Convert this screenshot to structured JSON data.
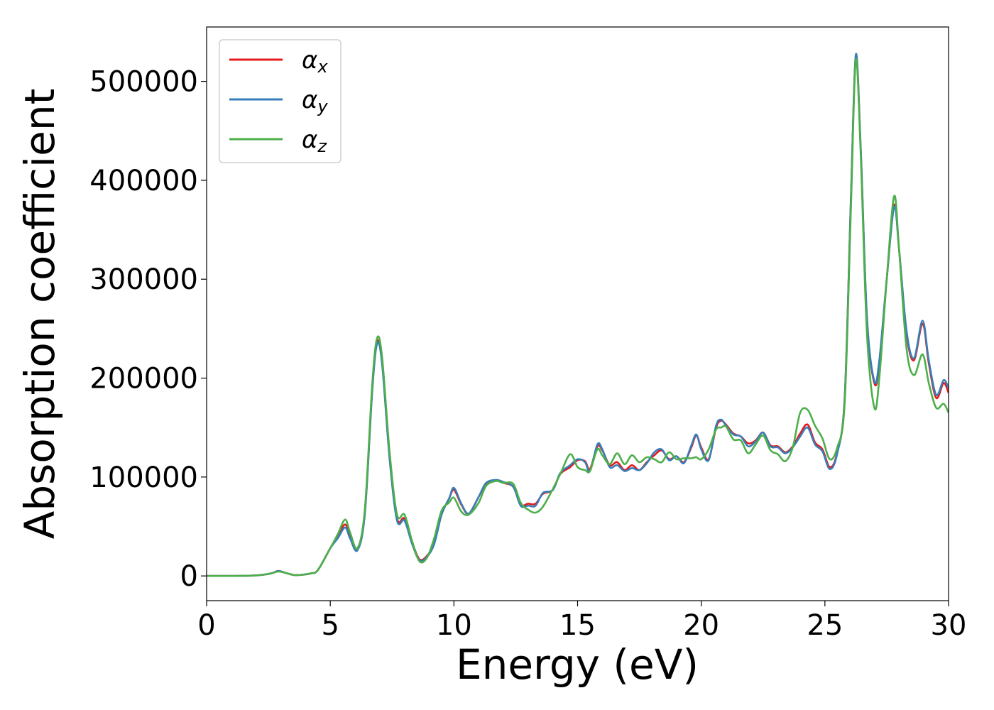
{
  "chart_data": {
    "type": "line",
    "title": "",
    "xlabel": "Energy (eV)",
    "ylabel": "Absorption coefficient",
    "xlim": [
      0,
      30
    ],
    "ylim": [
      -25000,
      555000
    ],
    "xticks": [
      0,
      5,
      10,
      15,
      20,
      25,
      30
    ],
    "xtick_labels": [
      "0",
      "5",
      "10",
      "15",
      "20",
      "25",
      "30"
    ],
    "yticks": [
      0,
      100000,
      200000,
      300000,
      400000,
      500000
    ],
    "ytick_labels": [
      "0",
      "100000",
      "200000",
      "300000",
      "400000",
      "500000"
    ],
    "grid": false,
    "legend_position": "top-left",
    "series": [
      {
        "name": "α_x",
        "label_main": "α",
        "label_sub": "x",
        "color": "#e41a1c",
        "points": [
          [
            0,
            0
          ],
          [
            1,
            0
          ],
          [
            2,
            500
          ],
          [
            2.6,
            2500
          ],
          [
            2.9,
            5000
          ],
          [
            3.2,
            3000
          ],
          [
            3.6,
            800
          ],
          [
            4.2,
            2500
          ],
          [
            4.5,
            6000
          ],
          [
            5,
            28000
          ],
          [
            5.3,
            40000
          ],
          [
            5.6,
            52000
          ],
          [
            5.8,
            40000
          ],
          [
            6.1,
            27000
          ],
          [
            6.4,
            65000
          ],
          [
            6.7,
            190000
          ],
          [
            6.9,
            237000
          ],
          [
            7.1,
            215000
          ],
          [
            7.4,
            120000
          ],
          [
            7.7,
            58000
          ],
          [
            8,
            58000
          ],
          [
            8.3,
            35000
          ],
          [
            8.6,
            17000
          ],
          [
            8.9,
            20000
          ],
          [
            9.2,
            33000
          ],
          [
            9.5,
            62000
          ],
          [
            9.8,
            78000
          ],
          [
            10,
            87000
          ],
          [
            10.3,
            72000
          ],
          [
            10.6,
            63000
          ],
          [
            11,
            80000
          ],
          [
            11.3,
            93000
          ],
          [
            11.7,
            97000
          ],
          [
            12,
            94000
          ],
          [
            12.4,
            90000
          ],
          [
            12.7,
            72000
          ],
          [
            13,
            73000
          ],
          [
            13.3,
            73000
          ],
          [
            13.6,
            83000
          ],
          [
            14,
            87000
          ],
          [
            14.3,
            103000
          ],
          [
            14.7,
            110000
          ],
          [
            15,
            117000
          ],
          [
            15.3,
            116000
          ],
          [
            15.5,
            108000
          ],
          [
            15.8,
            131000
          ],
          [
            16,
            127000
          ],
          [
            16.3,
            112000
          ],
          [
            16.6,
            115000
          ],
          [
            16.9,
            107000
          ],
          [
            17.2,
            112000
          ],
          [
            17.5,
            107000
          ],
          [
            17.8,
            115000
          ],
          [
            18.1,
            122000
          ],
          [
            18.4,
            127000
          ],
          [
            18.7,
            118000
          ],
          [
            19,
            121000
          ],
          [
            19.3,
            115000
          ],
          [
            19.6,
            130000
          ],
          [
            19.8,
            142000
          ],
          [
            20,
            130000
          ],
          [
            20.3,
            118000
          ],
          [
            20.6,
            150000
          ],
          [
            20.8,
            157000
          ],
          [
            21,
            153000
          ],
          [
            21.3,
            144000
          ],
          [
            21.6,
            141000
          ],
          [
            21.9,
            134000
          ],
          [
            22.2,
            137000
          ],
          [
            22.5,
            145000
          ],
          [
            22.8,
            132000
          ],
          [
            23.1,
            131000
          ],
          [
            23.4,
            125000
          ],
          [
            23.7,
            131000
          ],
          [
            24,
            144000
          ],
          [
            24.3,
            153000
          ],
          [
            24.6,
            135000
          ],
          [
            24.9,
            128000
          ],
          [
            25.2,
            110000
          ],
          [
            25.5,
            125000
          ],
          [
            25.8,
            180000
          ],
          [
            26.05,
            380000
          ],
          [
            26.25,
            525000
          ],
          [
            26.45,
            430000
          ],
          [
            26.7,
            260000
          ],
          [
            27,
            195000
          ],
          [
            27.2,
            215000
          ],
          [
            27.5,
            300000
          ],
          [
            27.8,
            375000
          ],
          [
            28,
            330000
          ],
          [
            28.3,
            245000
          ],
          [
            28.6,
            218000
          ],
          [
            28.95,
            255000
          ],
          [
            29.2,
            215000
          ],
          [
            29.5,
            180000
          ],
          [
            29.8,
            195000
          ],
          [
            30,
            185000
          ]
        ]
      },
      {
        "name": "α_y",
        "label_main": "α",
        "label_sub": "y",
        "color": "#377eb8",
        "points": [
          [
            0,
            0
          ],
          [
            1,
            0
          ],
          [
            2,
            500
          ],
          [
            2.6,
            2500
          ],
          [
            2.9,
            5000
          ],
          [
            3.2,
            3000
          ],
          [
            3.6,
            800
          ],
          [
            4.2,
            2500
          ],
          [
            4.5,
            6000
          ],
          [
            5,
            28000
          ],
          [
            5.3,
            38000
          ],
          [
            5.6,
            49000
          ],
          [
            5.8,
            38000
          ],
          [
            6.1,
            26000
          ],
          [
            6.4,
            63000
          ],
          [
            6.7,
            188000
          ],
          [
            6.9,
            235000
          ],
          [
            7.1,
            213000
          ],
          [
            7.4,
            118000
          ],
          [
            7.7,
            56000
          ],
          [
            8,
            56000
          ],
          [
            8.3,
            33000
          ],
          [
            8.6,
            16000
          ],
          [
            8.9,
            19000
          ],
          [
            9.2,
            32000
          ],
          [
            9.5,
            62000
          ],
          [
            9.8,
            78000
          ],
          [
            10,
            89000
          ],
          [
            10.3,
            73000
          ],
          [
            10.6,
            63000
          ],
          [
            11,
            80000
          ],
          [
            11.3,
            94000
          ],
          [
            11.7,
            97000
          ],
          [
            12,
            95000
          ],
          [
            12.4,
            90000
          ],
          [
            12.7,
            71000
          ],
          [
            13,
            71000
          ],
          [
            13.3,
            71000
          ],
          [
            13.6,
            84000
          ],
          [
            14,
            87000
          ],
          [
            14.3,
            104000
          ],
          [
            14.7,
            112000
          ],
          [
            15,
            118000
          ],
          [
            15.3,
            115000
          ],
          [
            15.5,
            106000
          ],
          [
            15.8,
            133000
          ],
          [
            16,
            128000
          ],
          [
            16.3,
            110000
          ],
          [
            16.6,
            112000
          ],
          [
            16.9,
            106000
          ],
          [
            17.2,
            109000
          ],
          [
            17.5,
            107000
          ],
          [
            17.8,
            114000
          ],
          [
            18.1,
            125000
          ],
          [
            18.4,
            128000
          ],
          [
            18.7,
            117000
          ],
          [
            19,
            121000
          ],
          [
            19.3,
            114000
          ],
          [
            19.6,
            132000
          ],
          [
            19.8,
            143000
          ],
          [
            20,
            128000
          ],
          [
            20.3,
            117000
          ],
          [
            20.6,
            152000
          ],
          [
            20.8,
            158000
          ],
          [
            21,
            152000
          ],
          [
            21.3,
            143000
          ],
          [
            21.6,
            141000
          ],
          [
            21.9,
            131000
          ],
          [
            22.2,
            136000
          ],
          [
            22.5,
            145000
          ],
          [
            22.8,
            131000
          ],
          [
            23.1,
            130000
          ],
          [
            23.4,
            124000
          ],
          [
            23.7,
            130000
          ],
          [
            24,
            141000
          ],
          [
            24.3,
            150000
          ],
          [
            24.6,
            133000
          ],
          [
            24.9,
            126000
          ],
          [
            25.2,
            108000
          ],
          [
            25.5,
            124000
          ],
          [
            25.8,
            180000
          ],
          [
            26.05,
            380000
          ],
          [
            26.25,
            527000
          ],
          [
            26.45,
            432000
          ],
          [
            26.7,
            262000
          ],
          [
            27,
            197000
          ],
          [
            27.2,
            218000
          ],
          [
            27.5,
            300000
          ],
          [
            27.8,
            373000
          ],
          [
            28,
            330000
          ],
          [
            28.3,
            248000
          ],
          [
            28.6,
            220000
          ],
          [
            28.95,
            258000
          ],
          [
            29.2,
            218000
          ],
          [
            29.5,
            183000
          ],
          [
            29.8,
            198000
          ],
          [
            30,
            190000
          ]
        ]
      },
      {
        "name": "α_z",
        "label_main": "α",
        "label_sub": "z",
        "color": "#4daf4a",
        "points": [
          [
            0,
            0
          ],
          [
            1,
            0
          ],
          [
            2,
            500
          ],
          [
            2.6,
            2500
          ],
          [
            2.9,
            4500
          ],
          [
            3.2,
            3000
          ],
          [
            3.6,
            800
          ],
          [
            4.2,
            2500
          ],
          [
            4.5,
            6000
          ],
          [
            5,
            28000
          ],
          [
            5.3,
            42000
          ],
          [
            5.6,
            57000
          ],
          [
            5.8,
            44000
          ],
          [
            6.1,
            28000
          ],
          [
            6.4,
            68000
          ],
          [
            6.7,
            195000
          ],
          [
            6.9,
            241000
          ],
          [
            7.1,
            220000
          ],
          [
            7.4,
            125000
          ],
          [
            7.7,
            62000
          ],
          [
            8,
            62000
          ],
          [
            8.3,
            36000
          ],
          [
            8.6,
            15000
          ],
          [
            8.9,
            18000
          ],
          [
            9.2,
            38000
          ],
          [
            9.5,
            66000
          ],
          [
            9.8,
            74000
          ],
          [
            10,
            79000
          ],
          [
            10.3,
            65000
          ],
          [
            10.6,
            62000
          ],
          [
            11,
            74000
          ],
          [
            11.3,
            91000
          ],
          [
            11.7,
            96000
          ],
          [
            12,
            94000
          ],
          [
            12.4,
            93000
          ],
          [
            12.7,
            74000
          ],
          [
            13,
            67000
          ],
          [
            13.3,
            64000
          ],
          [
            13.6,
            70000
          ],
          [
            14,
            88000
          ],
          [
            14.3,
            103000
          ],
          [
            14.7,
            123000
          ],
          [
            15,
            110000
          ],
          [
            15.3,
            107000
          ],
          [
            15.5,
            106000
          ],
          [
            15.8,
            128000
          ],
          [
            16,
            122000
          ],
          [
            16.3,
            113000
          ],
          [
            16.6,
            124000
          ],
          [
            16.9,
            113000
          ],
          [
            17.2,
            122000
          ],
          [
            17.5,
            115000
          ],
          [
            17.8,
            120000
          ],
          [
            18.1,
            118000
          ],
          [
            18.4,
            115000
          ],
          [
            18.7,
            125000
          ],
          [
            19,
            118000
          ],
          [
            19.3,
            119000
          ],
          [
            19.6,
            119000
          ],
          [
            19.8,
            120000
          ],
          [
            20,
            118000
          ],
          [
            20.3,
            128000
          ],
          [
            20.6,
            148000
          ],
          [
            20.8,
            150000
          ],
          [
            21,
            151000
          ],
          [
            21.3,
            138000
          ],
          [
            21.6,
            137000
          ],
          [
            21.9,
            124000
          ],
          [
            22.2,
            133000
          ],
          [
            22.5,
            142000
          ],
          [
            22.8,
            127000
          ],
          [
            23.1,
            123000
          ],
          [
            23.4,
            116000
          ],
          [
            23.7,
            130000
          ],
          [
            24,
            165000
          ],
          [
            24.3,
            168000
          ],
          [
            24.6,
            152000
          ],
          [
            24.9,
            139000
          ],
          [
            25.2,
            118000
          ],
          [
            25.5,
            130000
          ],
          [
            25.8,
            175000
          ],
          [
            26.05,
            370000
          ],
          [
            26.25,
            522000
          ],
          [
            26.45,
            425000
          ],
          [
            26.7,
            245000
          ],
          [
            27,
            170000
          ],
          [
            27.2,
            200000
          ],
          [
            27.5,
            300000
          ],
          [
            27.8,
            384000
          ],
          [
            28,
            330000
          ],
          [
            28.3,
            230000
          ],
          [
            28.6,
            203000
          ],
          [
            28.95,
            224000
          ],
          [
            29.2,
            195000
          ],
          [
            29.5,
            170000
          ],
          [
            29.8,
            174000
          ],
          [
            30,
            165000
          ]
        ]
      }
    ]
  }
}
